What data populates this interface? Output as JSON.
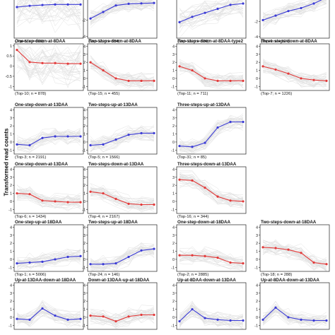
{
  "figure": {
    "ylabel": "Transformed read counts",
    "colors": {
      "background_lines": "#c8c8c8",
      "up": "#3b3bd6",
      "down": "#e23a3a",
      "axis": "#222222"
    }
  },
  "chart_data": [
    {
      "type": "line",
      "row": 0,
      "col": 0,
      "title": "",
      "cluster_label": "(Top-8; n = 928)",
      "color": "blue",
      "ylim": [
        -1.2,
        0.6
      ],
      "yticks": [],
      "series": [
        {
          "name": "mean",
          "values": [
            0.0,
            0.05,
            0.08,
            0.1,
            0.1,
            0.1
          ]
        }
      ]
    },
    {
      "type": "line",
      "row": 0,
      "col": 1,
      "title": "",
      "cluster_label": "(Top-12; n = 684)",
      "color": "blue",
      "ylim": [
        -4.2,
        1.5
      ],
      "yticks": [
        -4,
        -2
      ],
      "series": [
        {
          "name": "mean",
          "values": [
            -1.8,
            -1.0,
            -0.2,
            0.0,
            0.05,
            0.1
          ]
        }
      ]
    },
    {
      "type": "line",
      "row": 0,
      "col": 2,
      "title": "",
      "cluster_label": "(Top-13; n = 626)",
      "color": "blue",
      "ylim": [
        -1.5,
        2.0
      ],
      "yticks": [],
      "series": [
        {
          "name": "mean",
          "values": [
            -0.3,
            0.1,
            0.4,
            0.7,
            1.0,
            1.1
          ]
        }
      ]
    },
    {
      "type": "line",
      "row": 0,
      "col": 3,
      "title": "",
      "cluster_label": "(Top-9; n = 920)",
      "color": "blue",
      "ylim": [
        -4.2,
        2.0
      ],
      "yticks": [
        -4,
        -2
      ],
      "series": [
        {
          "name": "mean",
          "values": [
            -1.8,
            -1.2,
            -0.6,
            -0.2,
            0.4,
            1.2
          ]
        }
      ]
    },
    {
      "type": "line",
      "row": 1,
      "col": 0,
      "title": "One-step-down-at-8DAA",
      "cluster_label": "(Top-10; n = 878)",
      "color": "red",
      "ylim": [
        -1.2,
        1.1
      ],
      "yticks": [
        1.0,
        0.5,
        0.0,
        -0.5,
        -1.0
      ],
      "series": [
        {
          "name": "mean",
          "values": [
            0.8,
            0.2,
            0.15,
            0.15,
            0.12,
            0.12
          ]
        }
      ]
    },
    {
      "type": "line",
      "row": 1,
      "col": 1,
      "title": "Two-steps-down-at-8DAA",
      "cluster_label": "(Top-15; n = 455)",
      "color": "red",
      "ylim": [
        -1.5,
        4.3
      ],
      "yticks": [
        4,
        3,
        2,
        1,
        0,
        -1
      ],
      "series": [
        {
          "name": "mean",
          "values": [
            2.0,
            1.0,
            0.0,
            -0.3,
            -0.3,
            -0.3
          ]
        }
      ]
    },
    {
      "type": "line",
      "row": 1,
      "col": 2,
      "title": "Two-steps-down-at-8DAA-type2",
      "cluster_label": "(Top-11; n = 711)",
      "color": "red",
      "ylim": [
        -1.5,
        4.3
      ],
      "yticks": [
        4,
        3,
        2,
        1,
        0,
        -1
      ],
      "series": [
        {
          "name": "mean",
          "values": [
            1.5,
            1.0,
            0.0,
            -0.3,
            -0.3,
            -0.3
          ]
        }
      ]
    },
    {
      "type": "line",
      "row": 1,
      "col": 3,
      "title": "Three-steps-down-at-8DAA",
      "cluster_label": "(Top-7; n = 1226)",
      "color": "red",
      "ylim": [
        -1.5,
        4.3
      ],
      "yticks": [
        4,
        3,
        2,
        1,
        0,
        -1
      ],
      "series": [
        {
          "name": "mean",
          "values": [
            1.5,
            1.1,
            0.6,
            0.0,
            -0.2,
            -0.3
          ]
        }
      ]
    },
    {
      "type": "line",
      "row": 2,
      "col": 0,
      "title": "One-step-down-at-13DAA",
      "cluster_label": "(Top-3; n = 2191)",
      "color": "blue",
      "ylim": [
        -1.5,
        4.3
      ],
      "yticks": [
        4,
        3,
        2,
        1,
        0,
        -1
      ],
      "series": [
        {
          "name": "mean",
          "values": [
            -0.3,
            -0.4,
            0.5,
            0.7,
            0.7,
            0.7
          ]
        }
      ]
    },
    {
      "type": "line",
      "row": 2,
      "col": 1,
      "title": "Two-steps-up-at-13DAA",
      "cluster_label": "(Top-5; n = 1566)",
      "color": "blue",
      "ylim": [
        -1.5,
        4.3
      ],
      "yticks": [
        4,
        3,
        2,
        1,
        0,
        -1
      ],
      "series": [
        {
          "name": "mean",
          "values": [
            -0.4,
            -0.3,
            0.3,
            0.9,
            1.1,
            1.1
          ]
        }
      ]
    },
    {
      "type": "line",
      "row": 2,
      "col": 2,
      "title": "Three-steps-up-at-13DAA",
      "cluster_label": "(Top-31; n = 85)",
      "color": "blue",
      "ylim": [
        -1.5,
        4.3
      ],
      "yticks": [
        4,
        3,
        2,
        1,
        0,
        -1
      ],
      "series": [
        {
          "name": "mean",
          "values": [
            -0.5,
            -0.6,
            -0.1,
            1.8,
            2.5,
            2.5
          ]
        }
      ]
    },
    {
      "type": "line",
      "row": 3,
      "col": 0,
      "title": "One-step-down-at-13DAA",
      "cluster_label": "(Top-6; n = 1434)",
      "color": "red",
      "ylim": [
        -1.5,
        4.3
      ],
      "yticks": [
        4,
        3,
        2,
        1,
        0,
        -1
      ],
      "series": [
        {
          "name": "mean",
          "values": [
            1.0,
            0.9,
            0.1,
            0.0,
            -0.1,
            -0.1
          ]
        }
      ]
    },
    {
      "type": "line",
      "row": 3,
      "col": 1,
      "title": "Two-steps-down-at-13DAA",
      "cluster_label": "(Top-4; n = 2167)",
      "color": "red",
      "ylim": [
        -1.5,
        4.3
      ],
      "yticks": [
        4,
        3,
        2,
        1,
        0,
        -1
      ],
      "series": [
        {
          "name": "mean",
          "values": [
            1.2,
            1.0,
            0.3,
            -0.3,
            -0.4,
            -0.4
          ]
        }
      ]
    },
    {
      "type": "line",
      "row": 3,
      "col": 2,
      "title": "Three-steps-down-at-13DAA",
      "cluster_label": "(Top-16; n = 344)",
      "color": "red",
      "ylim": [
        -1.5,
        4.3
      ],
      "yticks": [
        4,
        3,
        2,
        1,
        0,
        -1
      ],
      "series": [
        {
          "name": "mean",
          "values": [
            2.7,
            2.6,
            1.7,
            0.6,
            0.1,
            0.0
          ]
        }
      ]
    },
    {
      "type": "line",
      "row": 4,
      "col": 0,
      "title": "One-step-up-at-18DAA",
      "cluster_label": "(Top-1; n = 5006)",
      "color": "blue",
      "ylim": [
        -1.5,
        4.3
      ],
      "yticks": [
        4,
        3,
        2,
        1,
        0,
        -1
      ],
      "series": [
        {
          "name": "mean",
          "values": [
            -0.5,
            -0.4,
            -0.3,
            0.0,
            0.3,
            0.4
          ]
        }
      ]
    },
    {
      "type": "line",
      "row": 4,
      "col": 1,
      "title": "Two-steps-up-at-18DAA",
      "cluster_label": "(Top-24; n = 146)",
      "color": "blue",
      "ylim": [
        -1.5,
        4.3
      ],
      "yticks": [
        4,
        3,
        2,
        1,
        0,
        -1
      ],
      "series": [
        {
          "name": "mean",
          "values": [
            -0.6,
            -0.6,
            -0.5,
            0.3,
            1.1,
            1.3
          ]
        }
      ]
    },
    {
      "type": "line",
      "row": 4,
      "col": 2,
      "title": "One-step-down-at-18DAA",
      "cluster_label": "(Top-2; n = 2885)",
      "color": "red",
      "ylim": [
        -1.5,
        4.3
      ],
      "yticks": [
        4,
        3,
        2,
        1,
        0,
        -1
      ],
      "series": [
        {
          "name": "mean",
          "values": [
            0.5,
            0.5,
            0.4,
            0.2,
            -0.4,
            -0.5
          ]
        }
      ]
    },
    {
      "type": "line",
      "row": 4,
      "col": 3,
      "title": "Two-steps-down-at-18DAA",
      "cluster_label": "(Top-18; n = 288)",
      "color": "red",
      "ylim": [
        -1.5,
        4.3
      ],
      "yticks": [
        4,
        3,
        2,
        1,
        0,
        -1
      ],
      "series": [
        {
          "name": "mean",
          "values": [
            1.5,
            1.4,
            1.2,
            0.8,
            -0.4,
            -0.6
          ]
        }
      ]
    },
    {
      "type": "line",
      "row": 5,
      "col": 0,
      "title": "Up-at-13DAA-down-at-18DAA",
      "cluster_label": "",
      "color": "blue",
      "ylim": [
        -1.5,
        4.3
      ],
      "yticks": [
        4,
        3,
        2,
        1,
        0,
        -1
      ],
      "series": [
        {
          "name": "mean",
          "values": [
            -0.2,
            -0.3,
            1.1,
            0.2,
            -0.3,
            -0.2
          ]
        }
      ]
    },
    {
      "type": "line",
      "row": 5,
      "col": 1,
      "title": "Down-at-13DAA-up-at-18DAA",
      "cluster_label": "",
      "color": "red",
      "ylim": [
        -1.5,
        4.3
      ],
      "yticks": [
        4,
        3,
        2,
        1,
        0,
        -1
      ],
      "series": [
        {
          "name": "mean",
          "values": [
            0.2,
            0.1,
            -0.5,
            0.1,
            0.3,
            0.3
          ]
        }
      ]
    },
    {
      "type": "line",
      "row": 5,
      "col": 2,
      "title": "Up-at-8DAA-down-at-13DAA",
      "cluster_label": "",
      "color": "blue",
      "ylim": [
        -1.5,
        4.3
      ],
      "yticks": [
        4,
        3,
        2,
        1,
        0,
        -1
      ],
      "series": [
        {
          "name": "mean",
          "values": [
            -0.5,
            1.0,
            -0.1,
            -0.3,
            -0.4,
            -0.4
          ]
        }
      ]
    },
    {
      "type": "line",
      "row": 5,
      "col": 3,
      "title": "Up-at-8DAA-down-at-13DAA",
      "cluster_label": "",
      "color": "blue",
      "ylim": [
        -1.5,
        4.3
      ],
      "yticks": [
        4,
        3,
        2,
        1,
        0,
        -1
      ],
      "series": [
        {
          "name": "mean",
          "values": [
            -0.3,
            1.2,
            0.0,
            -0.3,
            -0.4,
            -0.4
          ]
        }
      ]
    }
  ]
}
